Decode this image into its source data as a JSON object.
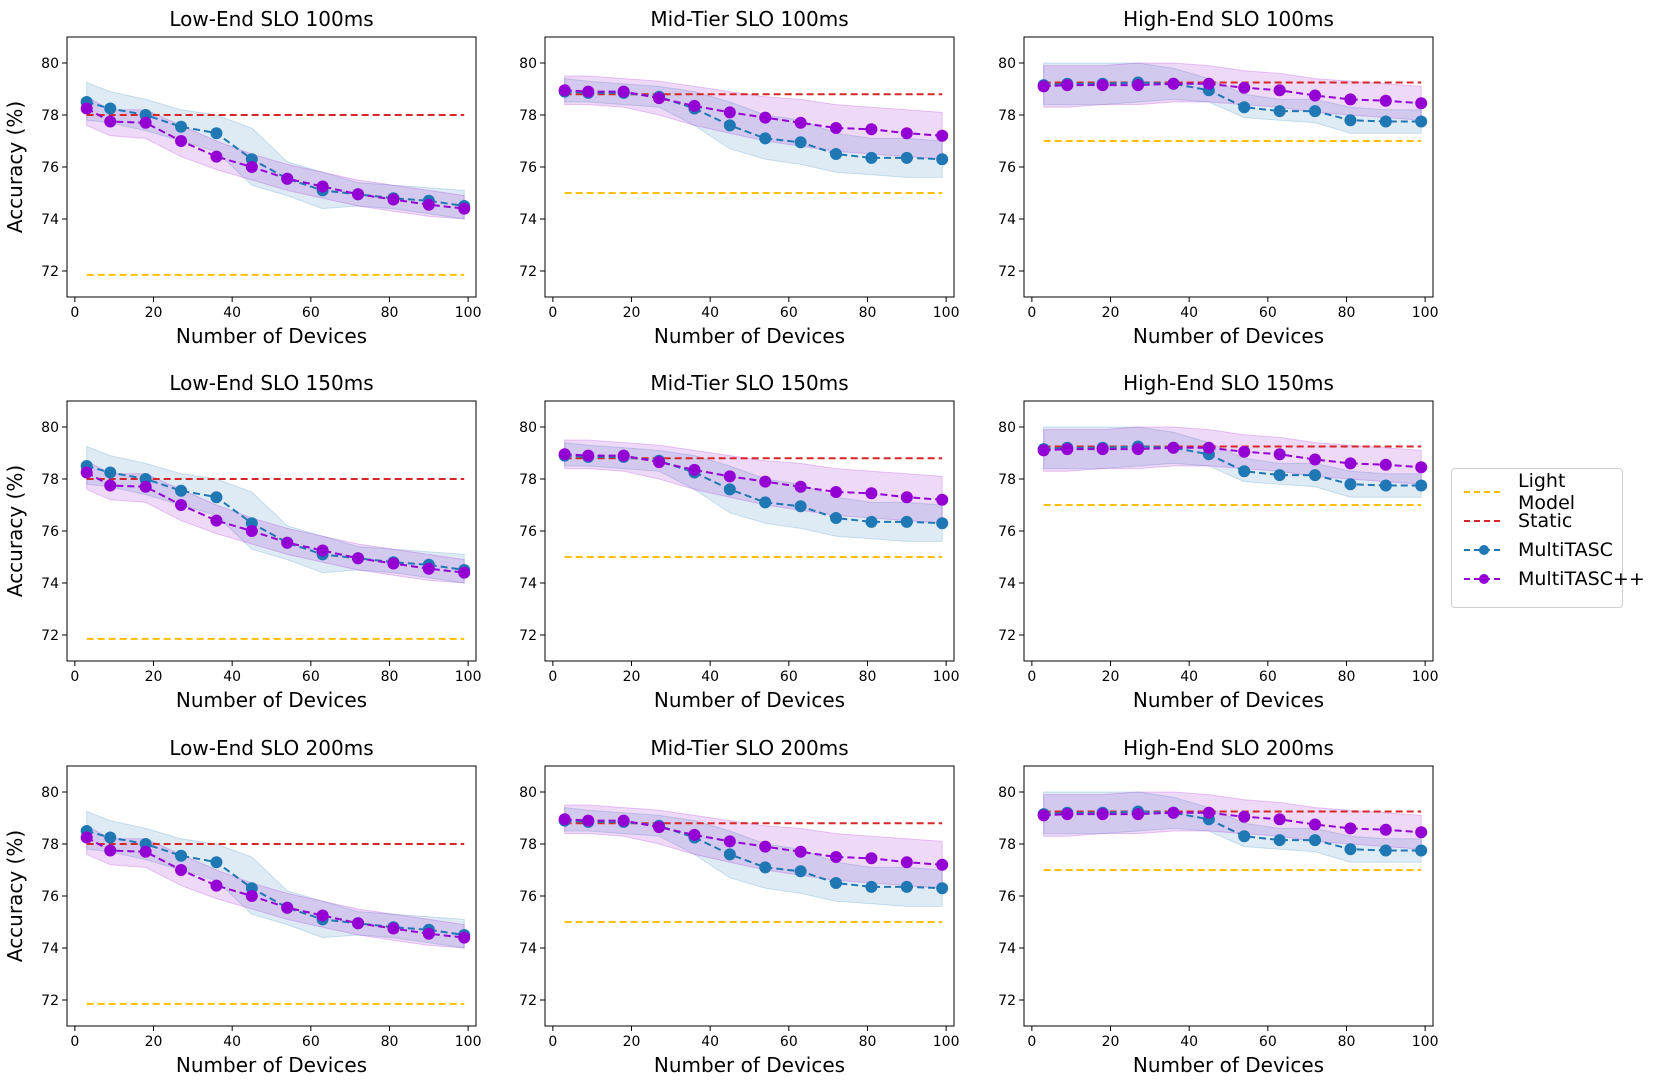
{
  "chart_data": {
    "type": "line",
    "layout": "3x3 grid",
    "legend": {
      "placement": "right",
      "entries": [
        {
          "name": "Light Model",
          "color": "#ffbf00",
          "marker": "none",
          "style": "dashed"
        },
        {
          "name": "Static",
          "color": "#d62728",
          "marker": "none",
          "style": "dashed"
        },
        {
          "name": "MultiTASC",
          "color": "#1f77b4",
          "marker": "circle",
          "style": "dashed"
        },
        {
          "name": "MultiTASC++",
          "color": "#9400d3",
          "marker": "circle",
          "style": "dashed"
        }
      ]
    },
    "colors": {
      "light": "#ffbf00",
      "static": "#d62728",
      "multitasc": "#1f77b4",
      "multitascpp": "#9400d3"
    },
    "axes": {
      "xlabel": "Number of Devices",
      "ylabel": "Accuracy (%)",
      "xlim": [
        -2,
        102
      ],
      "ylim": [
        71,
        81
      ],
      "xticks": [
        "0",
        "20",
        "40",
        "60",
        "80",
        "100"
      ],
      "yticks": [
        "72",
        "74",
        "76",
        "78",
        "80"
      ],
      "grid": false
    },
    "panels": [
      {
        "title": "Low-End SLO 100ms",
        "profile": "low"
      },
      {
        "title": "Mid-Tier SLO 100ms",
        "profile": "mid"
      },
      {
        "title": "High-End SLO 100ms",
        "profile": "high"
      },
      {
        "title": "Low-End SLO 150ms",
        "profile": "low"
      },
      {
        "title": "Mid-Tier SLO 150ms",
        "profile": "mid"
      },
      {
        "title": "High-End SLO 150ms",
        "profile": "high"
      },
      {
        "title": "Low-End SLO 200ms",
        "profile": "low"
      },
      {
        "title": "Mid-Tier SLO 200ms",
        "profile": "mid"
      },
      {
        "title": "High-End SLO 200ms",
        "profile": "high"
      }
    ],
    "profiles": {
      "low": {
        "light_model": 71.85,
        "static": 78.0,
        "x": [
          3,
          9,
          18,
          27,
          36,
          45,
          54,
          63,
          72,
          81,
          90,
          99
        ],
        "multitasc": [
          78.5,
          78.25,
          78.0,
          77.55,
          77.3,
          76.3,
          75.55,
          75.1,
          74.95,
          74.8,
          74.7,
          74.5
        ],
        "multitasc_band": [
          [
            77.8,
            79.25
          ],
          [
            77.7,
            78.9
          ],
          [
            77.4,
            78.6
          ],
          [
            77.0,
            78.2
          ],
          [
            76.6,
            78.0
          ],
          [
            75.3,
            77.5
          ],
          [
            74.9,
            76.2
          ],
          [
            74.4,
            75.8
          ],
          [
            74.5,
            75.4
          ],
          [
            74.4,
            75.3
          ],
          [
            74.2,
            75.2
          ],
          [
            74.0,
            75.1
          ]
        ],
        "multitascpp": [
          78.25,
          77.75,
          77.7,
          77.0,
          76.4,
          76.0,
          75.55,
          75.25,
          74.95,
          74.75,
          74.55,
          74.4
        ],
        "multitascpp_band": [
          [
            77.6,
            78.7
          ],
          [
            77.2,
            78.2
          ],
          [
            77.1,
            78.2
          ],
          [
            76.4,
            77.6
          ],
          [
            75.9,
            77.0
          ],
          [
            75.5,
            76.5
          ],
          [
            75.1,
            76.1
          ],
          [
            74.8,
            75.8
          ],
          [
            74.5,
            75.5
          ],
          [
            74.3,
            75.3
          ],
          [
            74.1,
            75.1
          ],
          [
            74.0,
            74.9
          ]
        ]
      },
      "mid": {
        "light_model": 75.0,
        "static": 78.8,
        "x": [
          3,
          9,
          18,
          27,
          36,
          45,
          54,
          63,
          72,
          81,
          90,
          99
        ],
        "multitasc": [
          78.9,
          78.85,
          78.85,
          78.7,
          78.25,
          77.6,
          77.1,
          76.95,
          76.5,
          76.35,
          76.35,
          76.3
        ],
        "multitasc_band": [
          [
            78.5,
            79.4
          ],
          [
            78.5,
            79.3
          ],
          [
            78.4,
            79.2
          ],
          [
            78.3,
            79.1
          ],
          [
            77.6,
            78.9
          ],
          [
            76.7,
            78.5
          ],
          [
            76.3,
            78.0
          ],
          [
            76.1,
            77.8
          ],
          [
            75.8,
            77.3
          ],
          [
            75.7,
            77.1
          ],
          [
            75.6,
            77.1
          ],
          [
            75.6,
            77.0
          ]
        ],
        "multitascpp": [
          78.95,
          78.9,
          78.9,
          78.65,
          78.35,
          78.1,
          77.9,
          77.7,
          77.5,
          77.45,
          77.3,
          77.2
        ],
        "multitascpp_band": [
          [
            78.4,
            79.5
          ],
          [
            78.4,
            79.5
          ],
          [
            78.3,
            79.4
          ],
          [
            78.0,
            79.3
          ],
          [
            77.6,
            79.1
          ],
          [
            77.3,
            78.9
          ],
          [
            77.0,
            78.7
          ],
          [
            76.8,
            78.6
          ],
          [
            76.6,
            78.4
          ],
          [
            76.5,
            78.3
          ],
          [
            76.4,
            78.2
          ],
          [
            76.3,
            78.1
          ]
        ]
      },
      "high": {
        "light_model": 77.0,
        "static": 79.25,
        "x": [
          3,
          9,
          18,
          27,
          36,
          45,
          54,
          63,
          72,
          81,
          90,
          99
        ],
        "multitasc": [
          79.15,
          79.2,
          79.2,
          79.25,
          79.2,
          78.95,
          78.3,
          78.15,
          78.15,
          77.8,
          77.75,
          77.75
        ],
        "multitasc_band": [
          [
            78.4,
            80.0
          ],
          [
            78.4,
            80.0
          ],
          [
            78.4,
            80.0
          ],
          [
            78.5,
            80.0
          ],
          [
            78.6,
            79.8
          ],
          [
            78.5,
            79.4
          ],
          [
            77.9,
            78.8
          ],
          [
            77.8,
            78.6
          ],
          [
            77.7,
            78.6
          ],
          [
            77.3,
            78.3
          ],
          [
            77.3,
            78.2
          ],
          [
            77.3,
            78.2
          ]
        ],
        "multitascpp": [
          79.1,
          79.15,
          79.15,
          79.15,
          79.2,
          79.2,
          79.05,
          78.95,
          78.75,
          78.6,
          78.55,
          78.45
        ],
        "multitascpp_band": [
          [
            78.3,
            79.9
          ],
          [
            78.3,
            79.9
          ],
          [
            78.4,
            79.9
          ],
          [
            78.4,
            80.0
          ],
          [
            78.5,
            80.0
          ],
          [
            78.5,
            79.9
          ],
          [
            78.4,
            79.7
          ],
          [
            78.3,
            79.6
          ],
          [
            78.1,
            79.4
          ],
          [
            78.0,
            79.3
          ],
          [
            77.9,
            79.2
          ],
          [
            77.8,
            79.1
          ]
        ]
      }
    }
  }
}
